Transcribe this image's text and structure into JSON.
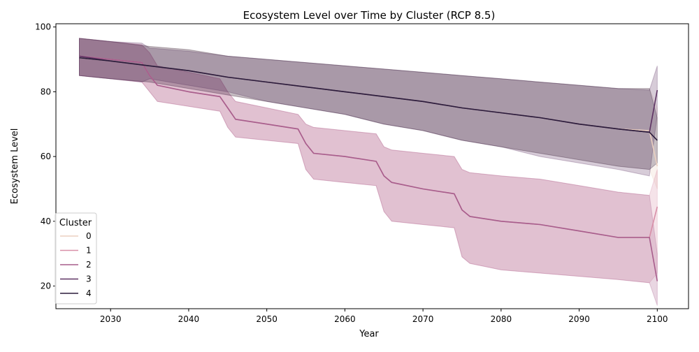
{
  "chart_data": {
    "type": "line",
    "title": "Ecosystem Level over Time by Cluster (RCP 8.5)",
    "xlabel": "Year",
    "ylabel": "Ecosystem Level",
    "xlim": [
      2023,
      2104
    ],
    "ylim": [
      13,
      101
    ],
    "xticks": [
      2030,
      2040,
      2050,
      2060,
      2070,
      2080,
      2090,
      2100
    ],
    "yticks": [
      20,
      40,
      60,
      80,
      100
    ],
    "grid": false,
    "legend": {
      "title": "Cluster",
      "placement": "lower-left",
      "entries": [
        "0",
        "1",
        "2",
        "3",
        "4"
      ]
    },
    "colors": [
      "#ebcfc0",
      "#d88fa8",
      "#a75d8c",
      "#5e3363",
      "#2b1c3b"
    ],
    "band_opacity": 0.25,
    "series": [
      {
        "name": "0",
        "points": [
          [
            2026,
            90.5
          ],
          [
            2030,
            89.5
          ],
          [
            2035,
            88
          ],
          [
            2040,
            86.5
          ],
          [
            2045,
            84.5
          ],
          [
            2050,
            83
          ],
          [
            2055,
            81.5
          ],
          [
            2060,
            80
          ],
          [
            2065,
            78.5
          ],
          [
            2070,
            77
          ],
          [
            2075,
            75
          ],
          [
            2080,
            73.5
          ],
          [
            2085,
            72
          ],
          [
            2090,
            70
          ],
          [
            2095,
            68.5
          ],
          [
            2099,
            68
          ],
          [
            2100,
            57
          ]
        ],
        "band": [
          [
            2026,
            85,
            96.5
          ],
          [
            2030,
            84,
            95.5
          ],
          [
            2035,
            83,
            94
          ],
          [
            2040,
            81,
            93
          ],
          [
            2045,
            79,
            91
          ],
          [
            2050,
            77,
            90
          ],
          [
            2055,
            75,
            89
          ],
          [
            2060,
            73,
            88
          ],
          [
            2065,
            70,
            87
          ],
          [
            2070,
            68,
            86
          ],
          [
            2075,
            65,
            85
          ],
          [
            2080,
            63,
            84
          ],
          [
            2085,
            61,
            83
          ],
          [
            2090,
            59,
            82
          ],
          [
            2095,
            57,
            81
          ],
          [
            2099,
            56,
            81
          ],
          [
            2100,
            50,
            75
          ]
        ]
      },
      {
        "name": "1",
        "points": [
          [
            2026,
            91
          ],
          [
            2030,
            90
          ],
          [
            2034,
            89
          ],
          [
            2035,
            85
          ],
          [
            2036,
            82
          ],
          [
            2040,
            80
          ],
          [
            2044,
            78.5
          ],
          [
            2045,
            75
          ],
          [
            2046,
            71.5
          ],
          [
            2050,
            70
          ],
          [
            2054,
            68.5
          ],
          [
            2055,
            64
          ],
          [
            2056,
            61
          ],
          [
            2060,
            60
          ],
          [
            2064,
            58.5
          ],
          [
            2065,
            54
          ],
          [
            2066,
            52
          ],
          [
            2070,
            50
          ],
          [
            2074,
            48.5
          ],
          [
            2075,
            43.5
          ],
          [
            2076,
            41.5
          ],
          [
            2080,
            40
          ],
          [
            2085,
            39
          ],
          [
            2090,
            37
          ],
          [
            2095,
            35
          ],
          [
            2099,
            35
          ],
          [
            2100,
            44.5
          ]
        ],
        "band": [
          [
            2026,
            85,
            96.5
          ],
          [
            2030,
            84,
            95.5
          ],
          [
            2034,
            83,
            94.5
          ],
          [
            2035,
            80,
            92
          ],
          [
            2036,
            77,
            88
          ],
          [
            2040,
            75.5,
            86
          ],
          [
            2044,
            74,
            84
          ],
          [
            2045,
            69,
            80
          ],
          [
            2046,
            66,
            77
          ],
          [
            2050,
            65,
            75
          ],
          [
            2054,
            64,
            73
          ],
          [
            2055,
            56,
            70
          ],
          [
            2056,
            53,
            69
          ],
          [
            2060,
            52,
            68
          ],
          [
            2064,
            51,
            67
          ],
          [
            2065,
            43,
            63
          ],
          [
            2066,
            40,
            62
          ],
          [
            2070,
            39,
            61
          ],
          [
            2074,
            38,
            60
          ],
          [
            2075,
            29,
            56
          ],
          [
            2076,
            27,
            55
          ],
          [
            2080,
            25,
            54
          ],
          [
            2085,
            24,
            53
          ],
          [
            2090,
            23,
            51
          ],
          [
            2095,
            22,
            49
          ],
          [
            2099,
            21,
            48
          ],
          [
            2100,
            24,
            56
          ]
        ]
      },
      {
        "name": "2",
        "points": [
          [
            2026,
            91
          ],
          [
            2030,
            90
          ],
          [
            2034,
            89
          ],
          [
            2035,
            85
          ],
          [
            2036,
            82
          ],
          [
            2040,
            80
          ],
          [
            2044,
            78.5
          ],
          [
            2045,
            75
          ],
          [
            2046,
            71.5
          ],
          [
            2050,
            70
          ],
          [
            2054,
            68.5
          ],
          [
            2055,
            64
          ],
          [
            2056,
            61
          ],
          [
            2060,
            60
          ],
          [
            2064,
            58.5
          ],
          [
            2065,
            54
          ],
          [
            2066,
            52
          ],
          [
            2070,
            50
          ],
          [
            2074,
            48.5
          ],
          [
            2075,
            43.5
          ],
          [
            2076,
            41.5
          ],
          [
            2080,
            40
          ],
          [
            2085,
            39
          ],
          [
            2090,
            37
          ],
          [
            2095,
            35
          ],
          [
            2099,
            35
          ],
          [
            2100,
            21.5
          ]
        ],
        "band": [
          [
            2026,
            85,
            96.5
          ],
          [
            2030,
            84,
            95.5
          ],
          [
            2034,
            83,
            94.5
          ],
          [
            2035,
            80,
            92
          ],
          [
            2036,
            77,
            88
          ],
          [
            2040,
            75.5,
            86
          ],
          [
            2044,
            74,
            84
          ],
          [
            2045,
            69,
            80
          ],
          [
            2046,
            66,
            77
          ],
          [
            2050,
            65,
            75
          ],
          [
            2054,
            64,
            73
          ],
          [
            2055,
            56,
            70
          ],
          [
            2056,
            53,
            69
          ],
          [
            2060,
            52,
            68
          ],
          [
            2064,
            51,
            67
          ],
          [
            2065,
            43,
            63
          ],
          [
            2066,
            40,
            62
          ],
          [
            2070,
            39,
            61
          ],
          [
            2074,
            38,
            60
          ],
          [
            2075,
            29,
            56
          ],
          [
            2076,
            27,
            55
          ],
          [
            2080,
            25,
            54
          ],
          [
            2085,
            24,
            53
          ],
          [
            2090,
            23,
            51
          ],
          [
            2095,
            22,
            49
          ],
          [
            2099,
            21,
            48
          ],
          [
            2100,
            14,
            30
          ]
        ]
      },
      {
        "name": "3",
        "points": [
          [
            2026,
            91
          ],
          [
            2030,
            89.5
          ],
          [
            2035,
            88
          ],
          [
            2040,
            86.5
          ],
          [
            2045,
            84.5
          ],
          [
            2050,
            83
          ],
          [
            2055,
            81.5
          ],
          [
            2060,
            80
          ],
          [
            2065,
            78.5
          ],
          [
            2070,
            77
          ],
          [
            2075,
            75
          ],
          [
            2080,
            73.5
          ],
          [
            2085,
            72
          ],
          [
            2090,
            70
          ],
          [
            2095,
            68.5
          ],
          [
            2099,
            67.5
          ],
          [
            2100,
            80.5
          ]
        ],
        "band": [
          [
            2026,
            85,
            96.5
          ],
          [
            2030,
            84,
            95.5
          ],
          [
            2034,
            83,
            95
          ],
          [
            2035,
            84,
            93.5
          ],
          [
            2040,
            82,
            92.5
          ],
          [
            2045,
            80,
            91
          ],
          [
            2050,
            77,
            90
          ],
          [
            2055,
            75,
            89
          ],
          [
            2060,
            73,
            88
          ],
          [
            2065,
            70,
            87
          ],
          [
            2070,
            68,
            86
          ],
          [
            2075,
            65,
            85
          ],
          [
            2080,
            63,
            84
          ],
          [
            2085,
            60,
            83
          ],
          [
            2090,
            58,
            82
          ],
          [
            2095,
            56,
            81
          ],
          [
            2099,
            54,
            80.5
          ],
          [
            2100,
            73,
            88
          ]
        ]
      },
      {
        "name": "4",
        "points": [
          [
            2026,
            90.5
          ],
          [
            2030,
            89.5
          ],
          [
            2035,
            88
          ],
          [
            2040,
            86.5
          ],
          [
            2045,
            84.5
          ],
          [
            2050,
            83
          ],
          [
            2055,
            81.5
          ],
          [
            2060,
            80
          ],
          [
            2065,
            78.5
          ],
          [
            2070,
            77
          ],
          [
            2075,
            75
          ],
          [
            2080,
            73.5
          ],
          [
            2085,
            72
          ],
          [
            2090,
            70
          ],
          [
            2095,
            68.5
          ],
          [
            2099,
            67.5
          ],
          [
            2100,
            65
          ]
        ],
        "band": [
          [
            2026,
            85,
            96.5
          ],
          [
            2030,
            84,
            95.5
          ],
          [
            2035,
            83,
            94
          ],
          [
            2040,
            81,
            93
          ],
          [
            2045,
            79,
            91
          ],
          [
            2050,
            77,
            90
          ],
          [
            2055,
            75,
            89
          ],
          [
            2060,
            73,
            88
          ],
          [
            2065,
            70,
            87
          ],
          [
            2070,
            68,
            86
          ],
          [
            2075,
            65,
            85
          ],
          [
            2080,
            63,
            84
          ],
          [
            2085,
            61,
            83
          ],
          [
            2090,
            59,
            82
          ],
          [
            2095,
            57,
            81
          ],
          [
            2099,
            56,
            81
          ],
          [
            2100,
            58,
            72
          ]
        ]
      }
    ]
  }
}
